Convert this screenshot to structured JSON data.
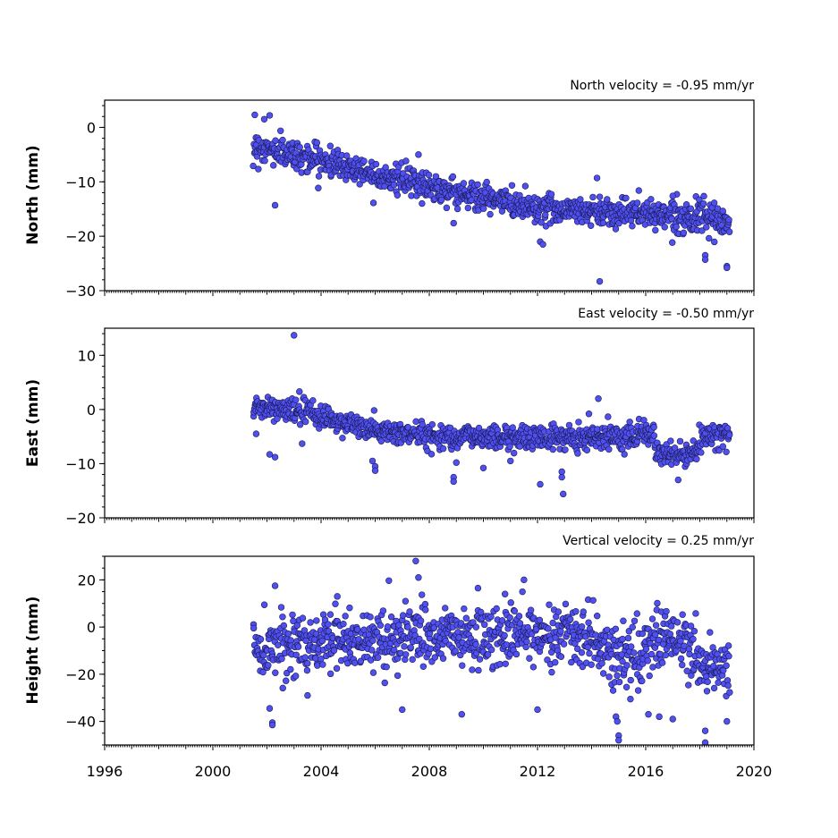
{
  "chart_data": [
    {
      "type": "scatter",
      "title": "North velocity = -0.95 mm/yr",
      "ylabel": "North (mm)",
      "xlim": [
        1996,
        2020
      ],
      "ylim": [
        -30,
        5
      ],
      "yticks": [
        0,
        -10,
        -20,
        -30
      ],
      "ytick_labels": [
        "0",
        "−10",
        "−20",
        "−30"
      ],
      "show_xtick_labels": false,
      "marker_color": "#5050f0",
      "marker_edge": "#1a1a55",
      "trend": [
        [
          2001.5,
          -3.5
        ],
        [
          2004.0,
          -6.0
        ],
        [
          2006.0,
          -8.5
        ],
        [
          2008.0,
          -10.8
        ],
        [
          2010.0,
          -13.0
        ],
        [
          2012.0,
          -14.8
        ],
        [
          2014.0,
          -15.3
        ],
        [
          2016.0,
          -15.8
        ],
        [
          2018.0,
          -16.5
        ],
        [
          2019.1,
          -17.8
        ]
      ],
      "scatter_sd": 1.3,
      "outliers": [
        [
          2001.55,
          2.3
        ],
        [
          2001.9,
          1.5
        ],
        [
          2002.1,
          2.2
        ],
        [
          2002.3,
          -14.3
        ],
        [
          2008.9,
          -17.6
        ],
        [
          2012.1,
          -21.0
        ],
        [
          2012.2,
          -21.5
        ],
        [
          2014.2,
          -9.3
        ],
        [
          2014.3,
          -28.3
        ],
        [
          2018.2,
          -23.5
        ],
        [
          2018.2,
          -24.3
        ],
        [
          2019.0,
          -25.5
        ],
        [
          2019.0,
          -25.8
        ],
        [
          2017.0,
          -12.6
        ],
        [
          2007.6,
          -5.0
        ]
      ]
    },
    {
      "type": "scatter",
      "title": "East velocity = -0.50 mm/yr",
      "ylabel": "East (mm)",
      "xlim": [
        1996,
        2020
      ],
      "ylim": [
        -20,
        15
      ],
      "yticks": [
        10,
        0,
        -10,
        -20
      ],
      "ytick_labels": [
        "10",
        "0",
        "−10",
        "−20"
      ],
      "show_xtick_labels": false,
      "marker_color": "#5050f0",
      "marker_edge": "#1a1a55",
      "trend": [
        [
          2001.5,
          0.5
        ],
        [
          2003.5,
          -0.5
        ],
        [
          2004.5,
          -2.0
        ],
        [
          2006.0,
          -4.0
        ],
        [
          2008.0,
          -4.8
        ],
        [
          2010.0,
          -5.0
        ],
        [
          2012.0,
          -5.2
        ],
        [
          2014.0,
          -5.0
        ],
        [
          2016.3,
          -4.5
        ],
        [
          2016.4,
          -8.5
        ],
        [
          2017.9,
          -8.3
        ],
        [
          2018.0,
          -5.0
        ],
        [
          2019.1,
          -5.0
        ]
      ],
      "scatter_sd": 1.1,
      "outliers": [
        [
          2003.0,
          13.7
        ],
        [
          2003.2,
          3.3
        ],
        [
          2001.6,
          -4.5
        ],
        [
          2002.1,
          -8.3
        ],
        [
          2002.3,
          -8.8
        ],
        [
          2003.3,
          -6.3
        ],
        [
          2005.9,
          -9.5
        ],
        [
          2006.0,
          -10.5
        ],
        [
          2006.0,
          -11.3
        ],
        [
          2008.9,
          -12.5
        ],
        [
          2008.9,
          -13.3
        ],
        [
          2010.0,
          -10.8
        ],
        [
          2012.1,
          -13.8
        ],
        [
          2012.9,
          -11.5
        ],
        [
          2012.9,
          -12.5
        ],
        [
          2012.95,
          -15.6
        ],
        [
          2014.25,
          2.0
        ],
        [
          2013.9,
          -0.8
        ],
        [
          2017.2,
          -13.0
        ],
        [
          2009.0,
          -9.8
        ],
        [
          2011.0,
          -9.5
        ]
      ]
    },
    {
      "type": "scatter",
      "title": "Vertical velocity = 0.25 mm/yr",
      "ylabel": "Height (mm)",
      "xlim": [
        1996,
        2020
      ],
      "ylim": [
        -50,
        30
      ],
      "yticks": [
        20,
        0,
        -20,
        -40
      ],
      "ytick_labels": [
        "20",
        "0",
        "−20",
        "−40"
      ],
      "xticks": [
        1996,
        2000,
        2004,
        2008,
        2012,
        2016,
        2020
      ],
      "xtick_labels": [
        "1996",
        "2000",
        "2004",
        "2008",
        "2012",
        "2016",
        "2020"
      ],
      "show_xtick_labels": true,
      "marker_color": "#5050f0",
      "marker_edge": "#1a1a55",
      "trend": [
        [
          2001.5,
          -8.0
        ],
        [
          2004.0,
          -6.0
        ],
        [
          2006.0,
          -5.0
        ],
        [
          2008.0,
          -4.0
        ],
        [
          2010.0,
          -5.0
        ],
        [
          2012.0,
          -3.0
        ],
        [
          2013.0,
          -1.0
        ],
        [
          2014.0,
          -7.0
        ],
        [
          2015.0,
          -13.0
        ],
        [
          2016.0,
          -10.0
        ],
        [
          2016.5,
          -5.0
        ],
        [
          2017.5,
          -6.0
        ],
        [
          2018.0,
          -15.0
        ],
        [
          2019.1,
          -18.0
        ]
      ],
      "scatter_sd": 6.5,
      "outliers": [
        [
          2002.3,
          17.5
        ],
        [
          2004.6,
          13.0
        ],
        [
          2007.5,
          28.0
        ],
        [
          2007.6,
          21.0
        ],
        [
          2009.8,
          16.5
        ],
        [
          2011.5,
          20.0
        ],
        [
          2010.8,
          14.0
        ],
        [
          2002.2,
          -40.5
        ],
        [
          2002.2,
          -41.5
        ],
        [
          2002.1,
          -34.5
        ],
        [
          2009.2,
          -37.0
        ],
        [
          2014.9,
          -38.0
        ],
        [
          2014.95,
          -40.0
        ],
        [
          2015.0,
          -46.0
        ],
        [
          2015.0,
          -48.0
        ],
        [
          2016.1,
          -37.0
        ],
        [
          2016.5,
          -38.0
        ],
        [
          2017.0,
          -39.0
        ],
        [
          2018.2,
          -44.0
        ],
        [
          2018.2,
          -49.0
        ],
        [
          2019.0,
          -40.0
        ],
        [
          2012.0,
          -35.0
        ],
        [
          2007.0,
          -35.0
        ],
        [
          2003.5,
          -29.0
        ]
      ]
    }
  ],
  "colors": {
    "marker": "#5050f0",
    "marker_edge": "#1a1a55",
    "axis": "#000000"
  }
}
